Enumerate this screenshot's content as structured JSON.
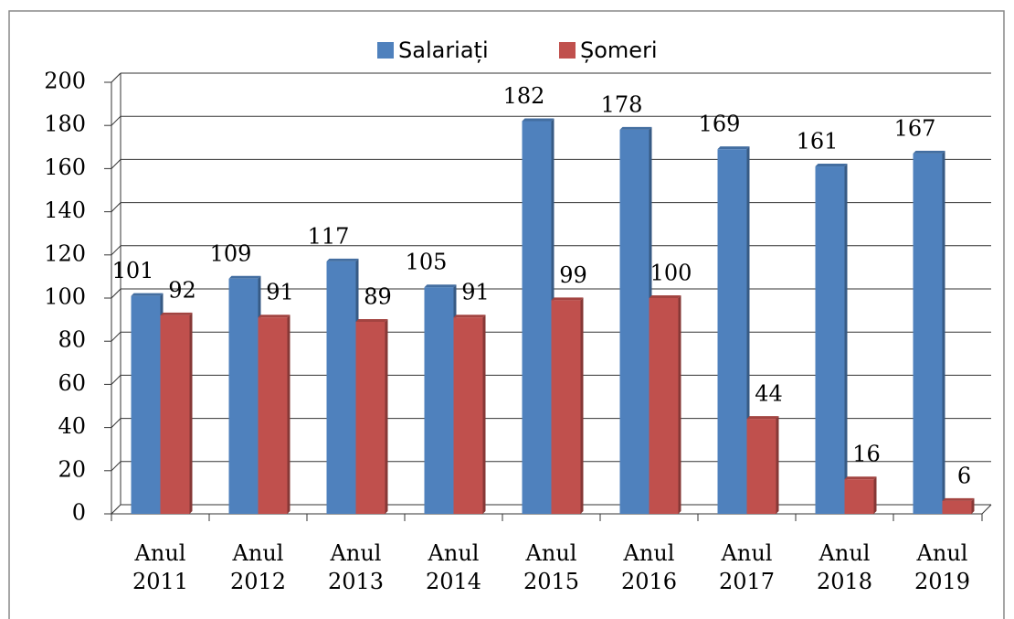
{
  "chart_data": {
    "type": "bar",
    "categories": [
      "Anul 2011",
      "Anul 2012",
      "Anul 2013",
      "Anul 2014",
      "Anul 2015",
      "Anul 2016",
      "Anul 2017",
      "Anul 2018",
      "Anul 2019"
    ],
    "series": [
      {
        "name": "Salariați",
        "color": "#4f81bd",
        "values": [
          101,
          109,
          117,
          105,
          182,
          178,
          169,
          161,
          167
        ]
      },
      {
        "name": "Șomeri",
        "color": "#c0504d",
        "values": [
          92,
          91,
          89,
          91,
          99,
          100,
          44,
          16,
          6
        ]
      }
    ],
    "ylim": [
      0,
      200
    ],
    "yticks": [
      0,
      20,
      40,
      60,
      80,
      100,
      120,
      140,
      160,
      180,
      200
    ],
    "grid": true,
    "legend": "top"
  }
}
